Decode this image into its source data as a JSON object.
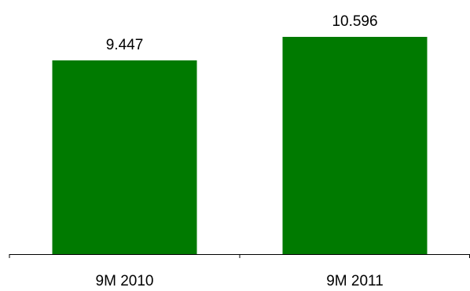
{
  "chart_data": {
    "type": "bar",
    "categories": [
      "9M 2010",
      "9M 2011"
    ],
    "values": [
      9.447,
      10.596
    ],
    "value_labels": [
      "9.447",
      "10.596"
    ],
    "title": "",
    "xlabel": "",
    "ylabel": "",
    "ylim": [
      0,
      11.5
    ],
    "bar_color": "#007A00",
    "axis_color": "#000000",
    "grid": false,
    "legend": "none"
  }
}
